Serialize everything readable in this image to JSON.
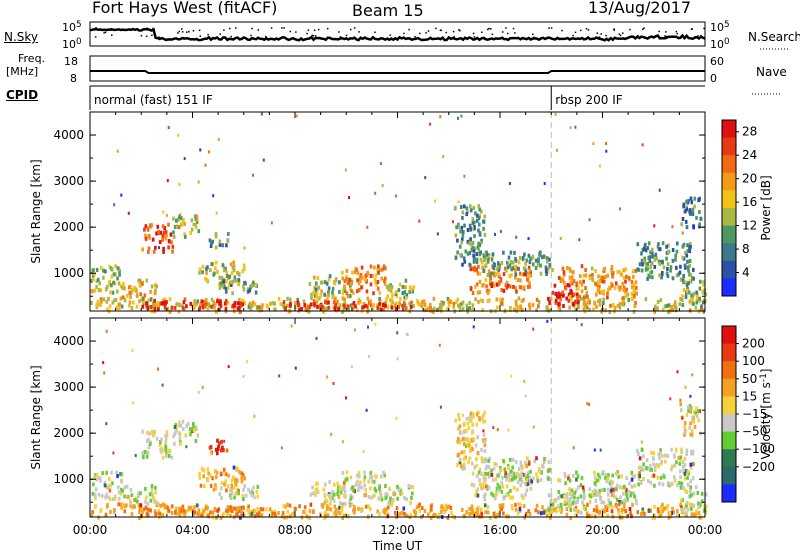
{
  "header": {
    "radar": "Fort Hays West (fitACF)",
    "beam": "Beam 15",
    "date": "13/Aug/2017"
  },
  "strip_labels": {
    "nsky": "N.Sky",
    "nsearch": "N.Search",
    "freq_line1": "Freq.",
    "freq_line2": "[MHz]",
    "nave": "Nave",
    "cpid": "CPID",
    "nsky_ticks": [
      "10^5",
      "10^0"
    ],
    "nsearch_ticks": [
      "10^5",
      "10^0"
    ],
    "freq_ticks": [
      "18",
      "8"
    ],
    "nave_ticks": [
      "60",
      "0"
    ]
  },
  "cpid_segments": [
    {
      "label": "normal (fast) 151 IF",
      "start_hour": 0
    },
    {
      "label": "rbsp 200 IF",
      "start_hour": 18
    }
  ],
  "time_axis": {
    "label": "Time UT",
    "ticks": [
      "00:00",
      "04:00",
      "08:00",
      "12:00",
      "16:00",
      "20:00",
      "00:00"
    ],
    "range_hours": [
      0,
      24
    ]
  },
  "chart_data": [
    {
      "type": "heatmap",
      "name": "power",
      "ylabel": "Slant Range [km]",
      "yticks": [
        1000,
        2000,
        3000,
        4000
      ],
      "ylim": [
        180,
        4500
      ],
      "xlim": [
        0,
        24
      ],
      "colorbar": {
        "label": "Power [dB]",
        "ticks": [
          "4",
          "8",
          "12",
          "16",
          "20",
          "24",
          "28"
        ],
        "colors": [
          "#1a2cff",
          "#2c4fa8",
          "#3b7a8c",
          "#4b9960",
          "#a8b844",
          "#f2c21a",
          "#f39a18",
          "#f06a14",
          "#e83a12",
          "#e01010"
        ]
      },
      "regions": [
        {
          "t0": 0.0,
          "t1": 24.0,
          "r0": 200,
          "r1": 500,
          "level": 0.55
        },
        {
          "t0": 2.0,
          "t1": 6.0,
          "r0": 250,
          "r1": 450,
          "level": 0.95
        },
        {
          "t0": 7.5,
          "t1": 12.5,
          "r0": 250,
          "r1": 420,
          "level": 0.9
        },
        {
          "t0": 0.0,
          "t1": 1.2,
          "r0": 600,
          "r1": 1200,
          "level": 0.45
        },
        {
          "t0": 1.2,
          "t1": 2.6,
          "r0": 500,
          "r1": 900,
          "level": 0.6
        },
        {
          "t0": 2.0,
          "t1": 3.2,
          "r0": 1500,
          "r1": 2100,
          "level": 0.8
        },
        {
          "t0": 3.2,
          "t1": 4.2,
          "r0": 1800,
          "r1": 2300,
          "level": 0.5
        },
        {
          "t0": 4.6,
          "t1": 5.4,
          "r0": 1600,
          "r1": 1900,
          "level": 0.35
        },
        {
          "t0": 4.2,
          "t1": 6.0,
          "r0": 800,
          "r1": 1300,
          "level": 0.45
        },
        {
          "t0": 5.0,
          "t1": 6.5,
          "r0": 600,
          "r1": 900,
          "level": 0.35
        },
        {
          "t0": 8.5,
          "t1": 10.2,
          "r0": 500,
          "r1": 1000,
          "level": 0.45
        },
        {
          "t0": 9.8,
          "t1": 11.5,
          "r0": 600,
          "r1": 1200,
          "level": 0.7
        },
        {
          "t0": 11.5,
          "t1": 12.6,
          "r0": 500,
          "r1": 900,
          "level": 0.45
        },
        {
          "t0": 14.2,
          "t1": 15.4,
          "r0": 1200,
          "r1": 2500,
          "level": 0.3
        },
        {
          "t0": 14.8,
          "t1": 17.2,
          "r0": 600,
          "r1": 1200,
          "level": 0.75
        },
        {
          "t0": 15.2,
          "t1": 18.0,
          "r0": 1000,
          "r1": 1500,
          "level": 0.35
        },
        {
          "t0": 17.8,
          "t1": 19.0,
          "r0": 300,
          "r1": 800,
          "level": 0.95
        },
        {
          "t0": 18.2,
          "t1": 21.3,
          "r0": 500,
          "r1": 1200,
          "level": 0.65
        },
        {
          "t0": 21.3,
          "t1": 23.5,
          "r0": 900,
          "r1": 1700,
          "level": 0.3
        },
        {
          "t0": 23.0,
          "t1": 24.0,
          "r0": 300,
          "r1": 900,
          "level": 0.4
        },
        {
          "t0": 23.0,
          "t1": 23.8,
          "r0": 2000,
          "r1": 2700,
          "level": 0.25
        }
      ]
    },
    {
      "type": "heatmap",
      "name": "velocity",
      "ylabel": "Slant Range [km]",
      "yticks": [
        1000,
        2000,
        3000,
        4000
      ],
      "ylim": [
        180,
        4500
      ],
      "xlim": [
        0,
        24
      ],
      "colorbar": {
        "label": "Velocity [m s^-1]",
        "ticks": [
          "200",
          "100",
          "50",
          "15",
          "-15",
          "-50",
          "-100",
          "-200"
        ],
        "colors": [
          "#1a2cff",
          "#2c6a6a",
          "#2f7a50",
          "#66cc33",
          "#c8c8c8",
          "#f5d23a",
          "#f5a020",
          "#f07010",
          "#e83a10",
          "#e01010"
        ]
      },
      "regions": [
        {
          "t0": 0.0,
          "t1": 24.0,
          "r0": 200,
          "r1": 500,
          "level": 0.65
        },
        {
          "t0": 2.0,
          "t1": 6.0,
          "r0": 250,
          "r1": 450,
          "level": 0.7
        },
        {
          "t0": 0.0,
          "t1": 1.2,
          "r0": 600,
          "r1": 1200,
          "level": 0.45
        },
        {
          "t0": 1.2,
          "t1": 2.6,
          "r0": 500,
          "r1": 900,
          "level": 0.45
        },
        {
          "t0": 2.0,
          "t1": 3.2,
          "r0": 1500,
          "r1": 2100,
          "level": 0.45
        },
        {
          "t0": 3.2,
          "t1": 4.2,
          "r0": 1800,
          "r1": 2300,
          "level": 0.45
        },
        {
          "t0": 4.6,
          "t1": 5.4,
          "r0": 1600,
          "r1": 1900,
          "level": 0.92
        },
        {
          "t0": 4.2,
          "t1": 6.0,
          "r0": 800,
          "r1": 1300,
          "level": 0.62
        },
        {
          "t0": 5.0,
          "t1": 6.5,
          "r0": 600,
          "r1": 900,
          "level": 0.45
        },
        {
          "t0": 8.5,
          "t1": 10.2,
          "r0": 500,
          "r1": 1000,
          "level": 0.45
        },
        {
          "t0": 9.8,
          "t1": 11.5,
          "r0": 600,
          "r1": 1200,
          "level": 0.45
        },
        {
          "t0": 11.5,
          "t1": 12.6,
          "r0": 500,
          "r1": 900,
          "level": 0.45
        },
        {
          "t0": 14.2,
          "t1": 15.4,
          "r0": 1200,
          "r1": 2500,
          "level": 0.55
        },
        {
          "t0": 14.8,
          "t1": 17.2,
          "r0": 600,
          "r1": 1200,
          "level": 0.45
        },
        {
          "t0": 15.2,
          "t1": 18.0,
          "r0": 1000,
          "r1": 1500,
          "level": 0.45
        },
        {
          "t0": 17.8,
          "t1": 19.0,
          "r0": 300,
          "r1": 800,
          "level": 0.45
        },
        {
          "t0": 18.2,
          "t1": 21.3,
          "r0": 500,
          "r1": 1200,
          "level": 0.45
        },
        {
          "t0": 21.3,
          "t1": 23.5,
          "r0": 900,
          "r1": 1700,
          "level": 0.45
        },
        {
          "t0": 23.0,
          "t1": 24.0,
          "r0": 300,
          "r1": 900,
          "level": 0.45
        },
        {
          "t0": 23.0,
          "t1": 23.8,
          "r0": 2000,
          "r1": 2700,
          "level": 0.5
        }
      ]
    }
  ]
}
